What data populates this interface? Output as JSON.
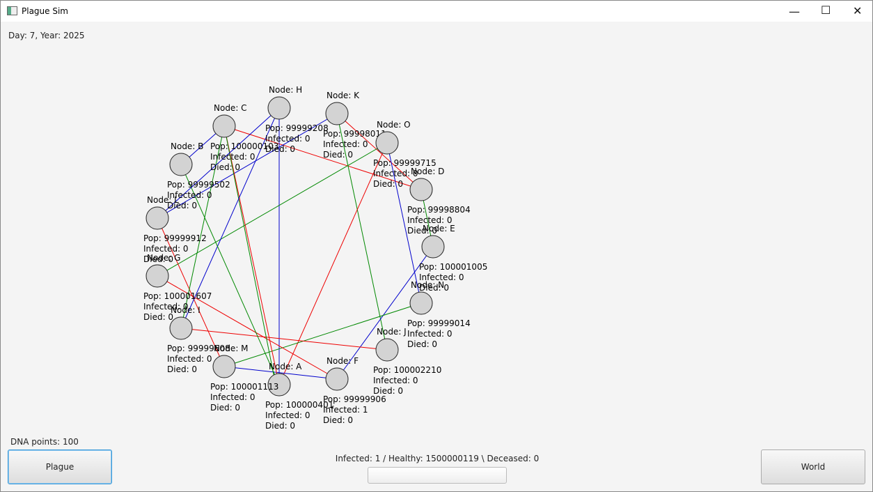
{
  "window": {
    "title": "Plague Sim"
  },
  "date_text": "Day: 7, Year: 2025",
  "nodes": [
    {
      "label": "Node: A",
      "pop": "Pop: 100000401",
      "infected": "Infected: 0",
      "died": "Died: 0"
    },
    {
      "label": "Node: B",
      "pop": "Pop: 99999502",
      "infected": "Infected: 0",
      "died": "Died: 0"
    },
    {
      "label": "Node: C",
      "pop": "Pop: 100000103",
      "infected": "Infected: 0",
      "died": "Died: 0"
    },
    {
      "label": "Node: D",
      "pop": "Pop: 99998804",
      "infected": "Infected: 0",
      "died": "Died: 0"
    },
    {
      "label": "Node: E",
      "pop": "Pop: 100001005",
      "infected": "Infected: 0",
      "died": "Died: 0"
    },
    {
      "label": "Node: F",
      "pop": "Pop: 99999906",
      "infected": "Infected: 1",
      "died": "Died: 0"
    },
    {
      "label": "Node: G",
      "pop": "Pop: 100001607",
      "infected": "Infected: 0",
      "died": "Died: 0"
    },
    {
      "label": "Node: H",
      "pop": "Pop: 99999208",
      "infected": "Infected: 0",
      "died": "Died: 0"
    },
    {
      "label": "Node: I",
      "pop": "Pop: 99999608",
      "infected": "Infected: 0",
      "died": "Died: 0"
    },
    {
      "label": "Node: J",
      "pop": "Pop: 100002210",
      "infected": "Infected: 0",
      "died": "Died: 0"
    },
    {
      "label": "Node: K",
      "pop": "Pop: 99998011",
      "infected": "Infected: 0",
      "died": "Died: 0"
    },
    {
      "label": "Node: L",
      "pop": "Pop: 99999912",
      "infected": "Infected: 0",
      "died": "Died: 0"
    },
    {
      "label": "Node: M",
      "pop": "Pop: 100001113",
      "infected": "Infected: 0",
      "died": "Died: 0"
    },
    {
      "label": "Node: N",
      "pop": "Pop: 99999014",
      "infected": "Infected: 0",
      "died": "Died: 0"
    },
    {
      "label": "Node: O",
      "pop": "Pop: 99999715",
      "infected": "Infected: 0",
      "died": "Died: 0"
    }
  ],
  "dna_points": "DNA points: 100",
  "status": "Infected: 1 / Healthy: 1500000119 \\ Deceased: 0",
  "buttons": {
    "plague": "Plague",
    "world": "World"
  }
}
